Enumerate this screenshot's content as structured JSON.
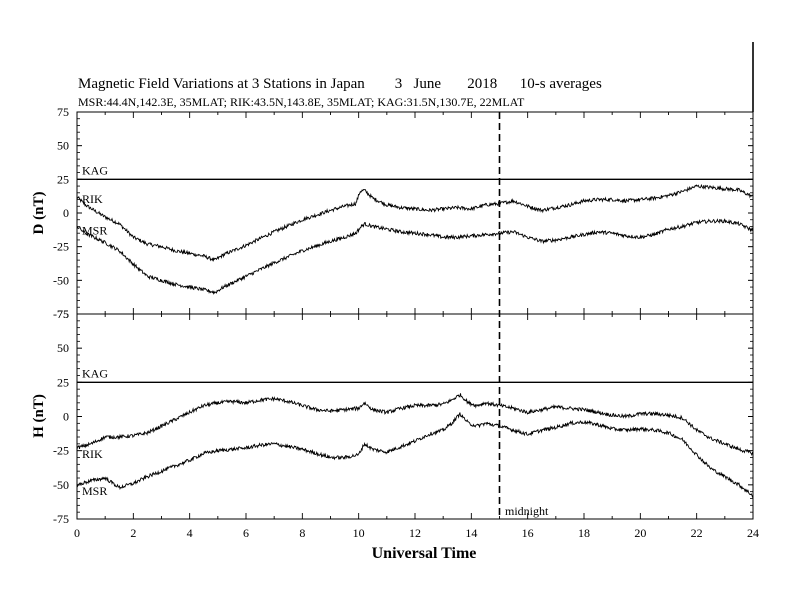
{
  "title": "Magnetic Field Variations at 3 Stations in Japan        3   June       2018      10-s averages",
  "subtitle": "MSR:44.4N,142.3E, 35MLAT;  RIK:43.5N,143.8E, 35MLAT;  KAG:31.5N,130.7E, 22MLAT",
  "midnight_label": "midnight",
  "chart_data": [
    {
      "type": "line",
      "panel": "D",
      "ylabel": "D (nT)",
      "ylim": [
        -75,
        75
      ],
      "yticks": [
        "75",
        "50",
        "25",
        "0",
        "-25",
        "-50",
        "-75"
      ],
      "xlim": [
        0,
        24
      ],
      "xticks": [],
      "series": [
        {
          "name": "KAG",
          "x": [
            0,
            24
          ],
          "values": [
            25,
            25
          ]
        },
        {
          "name": "RIK",
          "x": [
            0,
            0.3,
            0.6,
            1,
            1.5,
            2,
            2.5,
            3,
            3.5,
            4,
            4.5,
            4.9,
            5.2,
            6,
            7,
            8,
            9,
            9.5,
            9.9,
            10.05,
            10.2,
            10.5,
            11,
            11.5,
            12,
            12.5,
            13,
            13.5,
            14,
            14.5,
            15,
            15.5,
            16,
            16.5,
            17,
            17.5,
            18,
            18.5,
            19,
            19.5,
            20,
            20.5,
            21,
            21.5,
            22,
            22.5,
            23,
            23.5,
            24
          ],
          "values": [
            12,
            6,
            2,
            -3,
            -8,
            -18,
            -23,
            -25,
            -28,
            -30,
            -32,
            -35,
            -31,
            -24,
            -14,
            -5,
            2,
            5,
            7,
            16,
            17,
            11,
            6,
            4,
            3,
            2,
            3,
            4,
            3,
            6,
            7,
            9,
            5,
            2,
            4,
            6,
            9,
            10,
            10,
            9,
            10,
            11,
            13,
            16,
            20,
            19,
            18,
            17,
            12
          ]
        },
        {
          "name": "MSR",
          "x": [
            0,
            0.3,
            0.6,
            1,
            1.5,
            2,
            2.5,
            3,
            3.5,
            4,
            4.5,
            4.9,
            5.2,
            6,
            7,
            8,
            9,
            9.5,
            9.9,
            10.05,
            10.2,
            10.5,
            11,
            11.5,
            12,
            12.5,
            13,
            13.5,
            14,
            14.5,
            15,
            15.5,
            16,
            16.5,
            17,
            17.5,
            18,
            18.5,
            19,
            19.5,
            20,
            20.5,
            21,
            21.5,
            22,
            22.5,
            23,
            23.5,
            24
          ],
          "values": [
            -10,
            -15,
            -18,
            -22,
            -28,
            -38,
            -47,
            -50,
            -53,
            -55,
            -57,
            -59,
            -55,
            -47,
            -37,
            -28,
            -21,
            -18,
            -15,
            -11,
            -8,
            -10,
            -12,
            -14,
            -15,
            -16,
            -18,
            -18,
            -17,
            -16,
            -15,
            -14,
            -18,
            -21,
            -20,
            -18,
            -16,
            -14,
            -15,
            -17,
            -18,
            -16,
            -12,
            -10,
            -7,
            -6,
            -6,
            -8,
            -13
          ]
        }
      ]
    },
    {
      "type": "line",
      "panel": "H",
      "ylabel": "H (nT)",
      "xlabel": "Universal Time",
      "ylim": [
        -75,
        75
      ],
      "yticks": [
        "75",
        "50",
        "25",
        "0",
        "-25",
        "-50",
        "-75"
      ],
      "xlim": [
        0,
        24
      ],
      "xticks": [
        "0",
        "2",
        "4",
        "6",
        "8",
        "10",
        "12",
        "14",
        "16",
        "18",
        "20",
        "22",
        "24"
      ],
      "series": [
        {
          "name": "KAG",
          "x": [
            0,
            24
          ],
          "values": [
            25,
            25
          ]
        },
        {
          "name": "RIK",
          "x": [
            0,
            0.5,
            1,
            1.5,
            2,
            2.5,
            3,
            3.5,
            4,
            4.5,
            5,
            5.5,
            6,
            6.5,
            7,
            7.5,
            8,
            8.5,
            9,
            9.5,
            10,
            10.2,
            10.5,
            11,
            11.5,
            12,
            12.5,
            13,
            13.3,
            13.6,
            13.9,
            14.2,
            14.5,
            15,
            15.5,
            16,
            16.5,
            17,
            17.5,
            18,
            18.5,
            19,
            19.5,
            20,
            20.5,
            21,
            21.5,
            22,
            22.5,
            23,
            23.5,
            24
          ],
          "values": [
            -23,
            -20,
            -15,
            -15,
            -14,
            -12,
            -7,
            -2,
            3,
            8,
            10,
            11,
            10,
            12,
            13,
            11,
            8,
            5,
            4,
            5,
            6,
            10,
            5,
            3,
            6,
            8,
            8,
            9,
            12,
            16,
            10,
            8,
            10,
            8,
            6,
            3,
            5,
            7,
            6,
            5,
            3,
            1,
            0,
            2,
            2,
            1,
            -1,
            -10,
            -16,
            -20,
            -24,
            -27
          ]
        },
        {
          "name": "MSR",
          "x": [
            0,
            0.5,
            1,
            1.5,
            2,
            2.5,
            3,
            3.5,
            4,
            4.5,
            5,
            5.5,
            6,
            6.5,
            7,
            7.5,
            8,
            8.5,
            9,
            9.5,
            10,
            10.2,
            10.5,
            11,
            11.5,
            12,
            12.5,
            13,
            13.3,
            13.6,
            13.9,
            14.2,
            14.5,
            15,
            15.5,
            16,
            16.5,
            17,
            17.5,
            18,
            18.5,
            19,
            19.5,
            20,
            20.5,
            21,
            21.5,
            22,
            22.5,
            23,
            23.5,
            24
          ],
          "values": [
            -50,
            -47,
            -45,
            -52,
            -49,
            -44,
            -40,
            -36,
            -32,
            -27,
            -25,
            -24,
            -23,
            -21,
            -20,
            -22,
            -24,
            -27,
            -30,
            -30,
            -28,
            -20,
            -24,
            -26,
            -22,
            -18,
            -13,
            -10,
            -5,
            2,
            -5,
            -7,
            -5,
            -7,
            -10,
            -13,
            -10,
            -8,
            -5,
            -4,
            -6,
            -9,
            -10,
            -9,
            -10,
            -12,
            -17,
            -28,
            -38,
            -44,
            -50,
            -58
          ]
        }
      ]
    }
  ]
}
